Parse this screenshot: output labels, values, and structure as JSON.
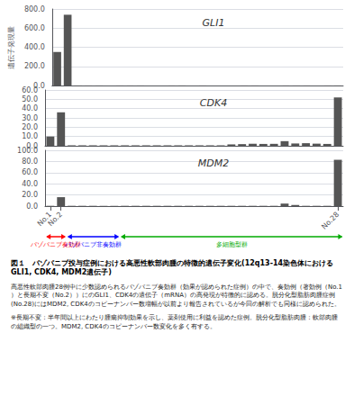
{
  "chart_data": [
    {
      "type": "bar",
      "title": "GLI1",
      "ylabel": "遺伝子発現量",
      "categories": [
        "No.1",
        "No.2",
        null,
        null,
        null,
        null,
        null,
        null,
        null,
        null,
        null,
        null,
        null,
        null,
        null,
        null,
        null,
        null,
        null,
        null,
        null,
        null,
        null,
        null,
        null,
        null,
        null,
        "No.28"
      ],
      "values": [
        350,
        740,
        0.5,
        0.3,
        0.4,
        0.2,
        0.3,
        0.3,
        0.4,
        0.2,
        0.2,
        0.3,
        0.5,
        0.2,
        0.3,
        0.2,
        0.2,
        0.3,
        0.3,
        0.3,
        0.2,
        0.2,
        0.3,
        0.3,
        0.3,
        0.2,
        0.3,
        0.5
      ],
      "color": "#555555",
      "ylim": [
        0,
        800
      ],
      "yticks": [
        {
          "value": 0,
          "label": "0.0"
        },
        {
          "value": 200,
          "label": "200.0"
        },
        {
          "value": 400,
          "label": "400.0"
        },
        {
          "value": 600,
          "label": "600.0"
        },
        {
          "value": 800,
          "label": "800.0"
        }
      ],
      "grid": true,
      "tick_labels": "y"
    },
    {
      "type": "bar",
      "title": "CDK4",
      "categories": [
        "No.1",
        "No.2",
        null,
        null,
        null,
        null,
        null,
        null,
        null,
        null,
        null,
        null,
        null,
        null,
        null,
        null,
        null,
        null,
        null,
        null,
        null,
        null,
        null,
        null,
        null,
        null,
        null,
        "No.28"
      ],
      "values": [
        10,
        36,
        0.5,
        0.5,
        0.5,
        0.5,
        0.5,
        0.5,
        0.5,
        0.5,
        0.5,
        0.5,
        0.5,
        0.5,
        0.5,
        0.5,
        0.5,
        1.5,
        1.8,
        2.2,
        2.0,
        2.1,
        5.0,
        2.5,
        2.8,
        2.3,
        2.0,
        52
      ],
      "color": "#555555",
      "ylim": [
        0,
        60
      ],
      "yticks": [
        {
          "value": 0,
          "label": "0.0"
        },
        {
          "value": 10,
          "label": "10.0"
        },
        {
          "value": 20,
          "label": "20.0"
        },
        {
          "value": 30,
          "label": "30.0"
        },
        {
          "value": 40,
          "label": "40.0"
        },
        {
          "value": 50,
          "label": "50.0"
        },
        {
          "value": 60,
          "label": "60.0"
        }
      ],
      "grid": true,
      "tick_labels": "y"
    },
    {
      "type": "bar",
      "title": "MDM2",
      "categories": [
        "No.1",
        "No.2",
        null,
        null,
        null,
        null,
        null,
        null,
        null,
        null,
        null,
        null,
        null,
        null,
        null,
        null,
        null,
        null,
        null,
        null,
        null,
        null,
        null,
        null,
        null,
        null,
        null,
        "No.28"
      ],
      "values": [
        0.5,
        16,
        0.5,
        0.5,
        0.5,
        0.5,
        0.5,
        0.5,
        0.5,
        0.5,
        0.5,
        0.5,
        0.5,
        0.5,
        0.5,
        0.5,
        0.5,
        0.5,
        0.5,
        0.5,
        0.5,
        0.5,
        4.5,
        2.0,
        0.5,
        0.5,
        0.5,
        83
      ],
      "color": "#555555",
      "ylim": [
        0,
        100
      ],
      "yticks": [
        {
          "value": 0,
          "label": "0.0"
        },
        {
          "value": 20,
          "label": "20.0"
        },
        {
          "value": 40,
          "label": "40.0"
        },
        {
          "value": 60,
          "label": "60.0"
        },
        {
          "value": 80,
          "label": "80.0"
        },
        {
          "value": 100,
          "label": "100.0"
        }
      ],
      "grid": true,
      "annotations": [
        {
          "text": "パゾパニブ奏効群",
          "color": "#ff0000",
          "span": [
            0,
            1
          ]
        },
        {
          "text": "パゾパニブ非奏効群",
          "color": "#0000ff",
          "span": [
            2,
            6
          ]
        },
        {
          "text": "多細胞型群",
          "color": "#00aa00",
          "span": [
            7,
            27
          ]
        },
        {
          "text": "図１　パゾパニブ投与症例における高悪性軟部肉腫の特徴的遺伝子変化(12q13-14染色体におけるGLI1, CDK4, MDM2遺伝子)"
        },
        {
          "text": "高悪性軟部肉腫28例中に少数認められるパゾパニブ奏効群（効果が認められた症例）の中で、奏効例（著効例（No.1）と長期不変（No.2））にのGLI1、CDK4の遺伝子（mRNA）の高発現が特徴的に認める。脱分化型脂肪肉腫症例(No.28)にはMDM2, CDK4のコピーナンバー数増幅が以前より報告されているが今回の解析でも同様に認められた。"
        },
        {
          "text": "※長期不変：半年間以上にわたり腫瘍抑制効果を示し、薬剤使用に利益を認めた症例。脱分化型脂肪肉腫：軟部肉腫の組織型の一つ。MDM2, CDK4のコピーナンバー数変化を多く有する。"
        }
      ]
    }
  ]
}
